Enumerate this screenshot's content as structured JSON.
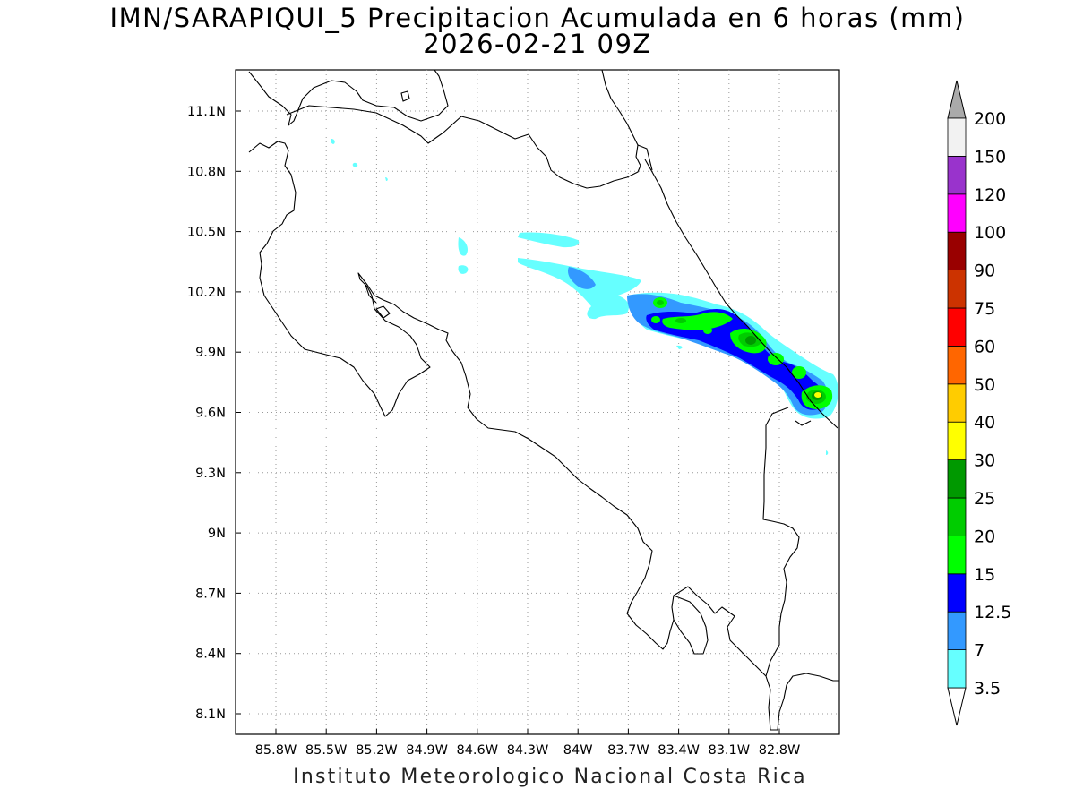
{
  "title": {
    "line1": "IMN/SARAPIQUI_5 Precipitacion Acumulada en 6 horas (mm)",
    "line2": "2026-02-21 09Z"
  },
  "footer": "Instituto Meteorologico Nacional Costa Rica",
  "map": {
    "lon_ticks": [
      "85.8W",
      "85.5W",
      "85.2W",
      "84.9W",
      "84.6W",
      "84.3W",
      "84W",
      "83.7W",
      "83.4W",
      "83.1W",
      "82.8W"
    ],
    "lat_ticks": [
      "11.1N",
      "10.8N",
      "10.5N",
      "10.2N",
      "9.9N",
      "9.6N",
      "9.3N",
      "9N",
      "8.7N",
      "8.4N",
      "8.1N"
    ],
    "grid": true,
    "grid_style": "dotted",
    "coastline_color": "#000000"
  },
  "colorbar": {
    "labels": [
      "3.5",
      "7",
      "12.5",
      "15",
      "20",
      "25",
      "30",
      "40",
      "50",
      "60",
      "75",
      "90",
      "100",
      "120",
      "150",
      "200"
    ],
    "colors": [
      "#66ffff",
      "#3399ff",
      "#0000ff",
      "#00ff00",
      "#00cc00",
      "#009900",
      "#ffff00",
      "#ffcc00",
      "#ff6600",
      "#ff0000",
      "#cc3300",
      "#990000",
      "#ff00ff",
      "#9933cc",
      "#f2f2f2"
    ],
    "under_color": "#ffffff",
    "over_color": "#aaaaaa"
  },
  "legend_colors_precip": {
    "c3_5": "#66ffff",
    "c7": "#3399ff",
    "c12_5": "#0000ff",
    "c15": "#00ff00",
    "c20": "#00cc00",
    "c25": "#009900",
    "c30": "#ffff00"
  }
}
